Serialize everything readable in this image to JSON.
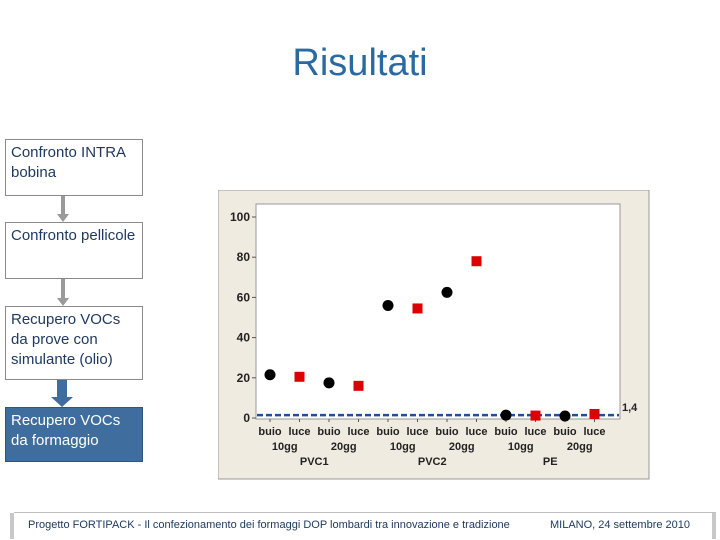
{
  "title": "Risultati",
  "flow": [
    {
      "label": "Confronto INTRA bobina",
      "active": false
    },
    {
      "label": "Confronto pellicole",
      "active": false
    },
    {
      "label": "Recupero VOCs da prove con simulante (olio)",
      "active": false
    },
    {
      "label": "Recupero VOCs da formaggio",
      "active": true
    }
  ],
  "chart_data": {
    "type": "scatter",
    "ylim": [
      0,
      100
    ],
    "yticks": [
      0,
      20,
      40,
      60,
      80,
      100
    ],
    "reference_line": {
      "value": 1.4,
      "label": "1,4",
      "color": "#1f4e9a"
    },
    "x_labels": {
      "condition": [
        "buio",
        "luce",
        "buio",
        "luce",
        "buio",
        "luce",
        "buio",
        "luce",
        "buio",
        "luce",
        "buio",
        "luce"
      ],
      "time": [
        "10gg",
        "20gg",
        "10gg",
        "20gg",
        "10gg",
        "20gg"
      ],
      "film": [
        "PVC1",
        "PVC2",
        "PE"
      ]
    },
    "series": [
      {
        "marker": "circle",
        "color": "#000000",
        "x": [
          1,
          3,
          5,
          7,
          9,
          11
        ],
        "y": [
          21.5,
          17.5,
          56,
          62.5,
          1.4,
          1.0
        ]
      },
      {
        "marker": "square",
        "color": "#dd0000",
        "x": [
          2,
          4,
          6,
          8,
          10,
          12
        ],
        "y": [
          20.5,
          16,
          54.5,
          78,
          1.2,
          2.0
        ]
      }
    ],
    "grid": false,
    "background": "#efebe0"
  },
  "footer": {
    "left": "Progetto FORTIPACK - Il confezionamento dei formaggi DOP lombardi tra innovazione e tradizione",
    "right": "MILANO, 24 settembre 2010"
  }
}
